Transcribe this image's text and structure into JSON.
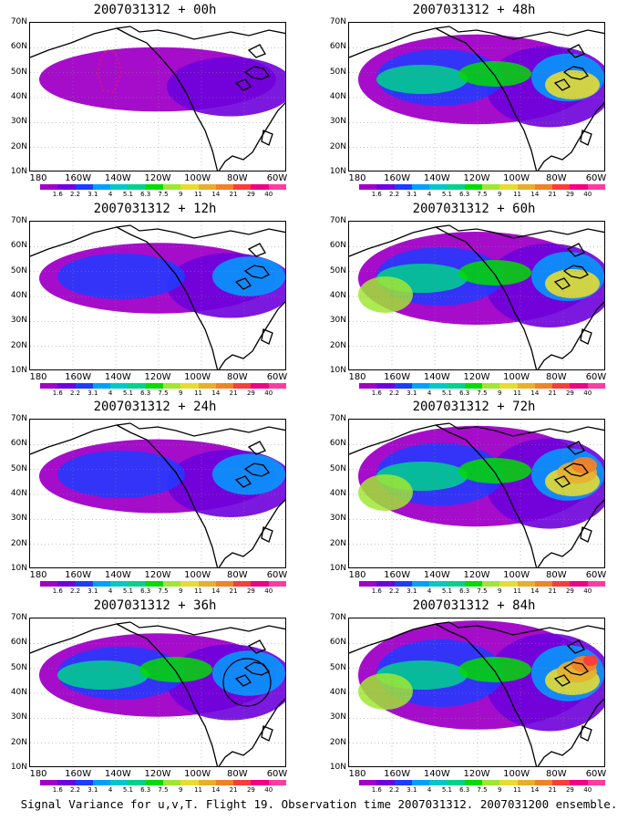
{
  "footer": "Signal Variance for u,v,T. Flight 19. Observation time 2007031312. 2007031200 ensemble.",
  "y_ticks": [
    "70N",
    "60N",
    "50N",
    "40N",
    "30N",
    "20N",
    "10N"
  ],
  "x_ticks": [
    "180",
    "160W",
    "140W",
    "120W",
    "100W",
    "80W",
    "60W"
  ],
  "colorbar": {
    "labels": [
      "1.6",
      "2.2",
      "3.1",
      "4",
      "5.1",
      "6.3",
      "7.5",
      "9",
      "11",
      "14",
      "21",
      "29",
      "40"
    ],
    "colors": [
      "#a000c8",
      "#6e00dc",
      "#1e3cff",
      "#00a0ff",
      "#00c8c8",
      "#00d28c",
      "#00dc00",
      "#a0e632",
      "#e6dc32",
      "#e6af2d",
      "#f08228",
      "#fa3c3c",
      "#f00082",
      "#ff3ca0"
    ]
  },
  "panels": [
    {
      "title": "2007031312 + 00h"
    },
    {
      "title": "2007031312 + 48h"
    },
    {
      "title": "2007031312 + 12h"
    },
    {
      "title": "2007031312 + 60h"
    },
    {
      "title": "2007031312 + 24h"
    },
    {
      "title": "2007031312 + 72h"
    },
    {
      "title": "2007031312 + 36h"
    },
    {
      "title": "2007031312 + 84h"
    }
  ]
}
